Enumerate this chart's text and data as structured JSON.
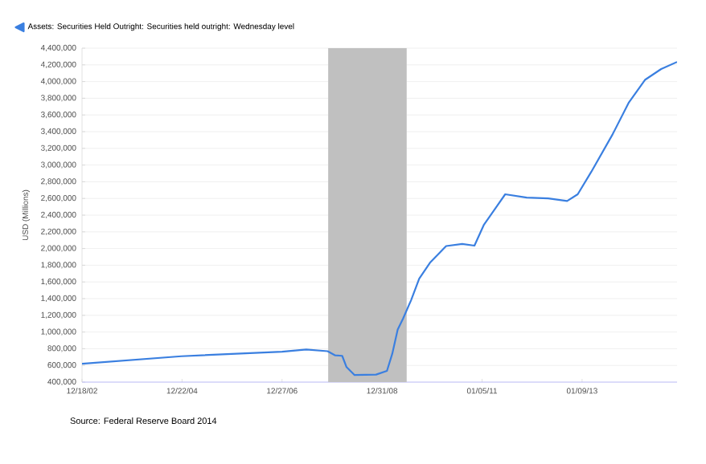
{
  "chart_data": {
    "type": "line",
    "ylabel": "USD (Millions)",
    "annotations": [
      "Source: Federal Reserve Board 2014"
    ],
    "x": [
      "2002-12-18",
      "2004-12-18",
      "2006-12-27",
      "2007-06-23",
      "2007-11-27",
      "2008-01-22",
      "2008-03-13",
      "2008-04-14",
      "2008-06-12",
      "2008-11-17",
      "2009-02-05",
      "2009-03-16",
      "2009-04-25",
      "2009-06-03",
      "2009-08-01",
      "2009-09-30",
      "2009-12-18",
      "2010-04-16",
      "2010-08-12",
      "2010-11-10",
      "2011-01-17",
      "2011-06-24",
      "2011-11-29",
      "2012-05-05",
      "2012-09-21",
      "2012-12-08",
      "2013-03-18",
      "2013-08-22",
      "2013-12-19",
      "2014-04-16",
      "2014-08-13",
      "2014-12-08"
    ],
    "series": [
      {
        "name": "Assets: Securities Held Outright: Securities held outright: Wednesday level",
        "color": "#3a7fe0",
        "values": [
          620000,
          710000,
          765000,
          790000,
          770000,
          720000,
          715000,
          580000,
          485000,
          490000,
          535000,
          740000,
          1030000,
          1160000,
          1380000,
          1640000,
          1830000,
          2030000,
          2055000,
          2035000,
          2280000,
          2650000,
          2610000,
          2600000,
          2570000,
          2650000,
          2920000,
          3370000,
          3750000,
          4020000,
          4150000,
          4235000
        ]
      }
    ],
    "xlim": [
      "2002-12-18",
      "2014-12-08"
    ],
    "xticks": [
      {
        "value": "2002-12-18",
        "label": "12/18/02"
      },
      {
        "value": "2004-12-22",
        "label": "12/22/04"
      },
      {
        "value": "2006-12-27",
        "label": "12/27/06"
      },
      {
        "value": "2008-12-31",
        "label": "12/31/08"
      },
      {
        "value": "2011-01-05",
        "label": "01/05/11"
      },
      {
        "value": "2013-01-09",
        "label": "01/09/13"
      }
    ],
    "ylim": [
      400000,
      4400000
    ],
    "yticks": [
      {
        "value": 400000,
        "label": "400,000"
      },
      {
        "value": 600000,
        "label": "600,000"
      },
      {
        "value": 800000,
        "label": "800,000"
      },
      {
        "value": 1000000,
        "label": "1,000,000"
      },
      {
        "value": 1200000,
        "label": "1,200,000"
      },
      {
        "value": 1400000,
        "label": "1,400,000"
      },
      {
        "value": 1600000,
        "label": "1,600,000"
      },
      {
        "value": 1800000,
        "label": "1,800,000"
      },
      {
        "value": 2000000,
        "label": "2,000,000"
      },
      {
        "value": 2200000,
        "label": "2,200,000"
      },
      {
        "value": 2400000,
        "label": "2,400,000"
      },
      {
        "value": 2600000,
        "label": "2,600,000"
      },
      {
        "value": 2800000,
        "label": "2,800,000"
      },
      {
        "value": 3000000,
        "label": "3,000,000"
      },
      {
        "value": 3200000,
        "label": "3,200,000"
      },
      {
        "value": 3400000,
        "label": "3,400,000"
      },
      {
        "value": 3600000,
        "label": "3,600,000"
      },
      {
        "value": 3800000,
        "label": "3,800,000"
      },
      {
        "value": 4000000,
        "label": "4,000,000"
      },
      {
        "value": 4200000,
        "label": "4,200,000"
      },
      {
        "value": 4400000,
        "label": "4,400,000"
      }
    ],
    "bands": [
      {
        "axis": "x",
        "from": "2007-12-01",
        "to": "2009-06-30",
        "color": "#c0c0c0"
      }
    ],
    "grid": "y",
    "legend": "top left",
    "line_style": "solid",
    "marker": "none"
  }
}
